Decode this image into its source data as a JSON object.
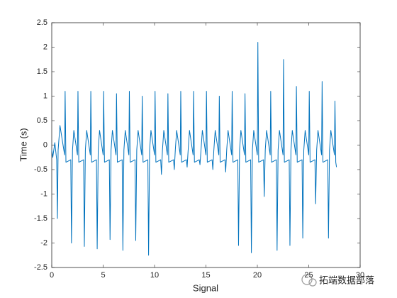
{
  "chart_data": {
    "type": "line",
    "xlabel": "Signal",
    "ylabel": "Time (s)",
    "xlim": [
      0,
      30
    ],
    "ylim": [
      -2.5,
      2.5
    ],
    "xticks": [
      0,
      5,
      10,
      15,
      20,
      25,
      30
    ],
    "yticks": [
      -2.5,
      -2,
      -1.5,
      -1,
      -0.5,
      0,
      0.5,
      1,
      1.5,
      2,
      2.5
    ],
    "x": [
      0,
      0.1,
      0.3,
      0.48,
      0.55,
      0.62,
      0.8,
      1.25,
      1.3,
      1.38,
      1.85,
      1.92,
      2.02,
      2.15,
      2.5,
      2.55,
      2.63,
      3.1,
      3.17,
      3.27,
      3.4,
      3.75,
      3.8,
      3.88,
      4.35,
      4.42,
      4.52,
      4.65,
      5,
      5.05,
      5.13,
      5.6,
      5.67,
      5.77,
      5.9,
      6.25,
      6.3,
      6.38,
      6.85,
      6.92,
      7.02,
      7.15,
      7.5,
      7.55,
      7.63,
      8.1,
      8.17,
      8.27,
      8.4,
      8.75,
      8.8,
      8.88,
      9.35,
      9.42,
      9.52,
      9.65,
      10,
      10.05,
      10.13,
      10.6,
      10.67,
      10.77,
      10.9,
      11.25,
      11.3,
      11.38,
      11.85,
      11.92,
      12.02,
      12.15,
      12.5,
      12.55,
      12.63,
      13.1,
      13.17,
      13.27,
      13.4,
      13.75,
      13.8,
      13.88,
      14.35,
      14.42,
      14.52,
      14.65,
      15,
      15.05,
      15.13,
      15.6,
      15.67,
      15.77,
      15.9,
      16.25,
      16.3,
      16.38,
      16.85,
      16.92,
      17.02,
      17.15,
      17.5,
      17.55,
      17.63,
      18.1,
      18.17,
      18.27,
      18.4,
      18.75,
      18.8,
      18.88,
      19.35,
      19.42,
      19.52,
      19.65,
      20,
      20.05,
      20.13,
      20.6,
      20.67,
      20.77,
      20.9,
      21.25,
      21.3,
      21.38,
      21.85,
      21.92,
      22.02,
      22.15,
      22.5,
      22.55,
      22.63,
      23.1,
      23.17,
      23.27,
      23.4,
      23.75,
      23.8,
      23.88,
      24.35,
      24.42,
      24.52,
      24.65,
      25,
      25.05,
      25.13,
      25.6,
      25.67,
      25.77,
      25.9,
      26.25,
      26.3,
      26.38,
      26.85,
      26.92,
      27.02,
      27.15,
      27.5,
      27.55,
      27.63,
      27.7
    ],
    "series": [
      {
        "color": "#0072bd",
        "values": [
          -0.1,
          -0.25,
          0.05,
          -0.3,
          -1.5,
          -0.1,
          0.4,
          -0.2,
          1.1,
          -0.35,
          -0.3,
          -2.0,
          -0.1,
          0.3,
          -0.2,
          1.1,
          -0.35,
          -0.3,
          -2.07,
          -0.1,
          0.3,
          -0.2,
          1.1,
          -0.35,
          -0.3,
          -2.12,
          -0.1,
          0.3,
          -0.2,
          1.1,
          -0.35,
          -0.3,
          -1.93,
          -0.1,
          0.3,
          -0.2,
          1.05,
          -0.35,
          -0.3,
          -2.15,
          -0.1,
          0.3,
          -0.2,
          1.1,
          -0.35,
          -0.3,
          -1.95,
          -0.1,
          0.3,
          -0.2,
          1.0,
          -0.35,
          -0.3,
          -2.25,
          -0.1,
          0.3,
          -0.2,
          1.1,
          -0.35,
          -0.3,
          -0.6,
          -0.1,
          0.3,
          -0.2,
          1.05,
          -0.35,
          -0.3,
          -0.5,
          -0.1,
          0.3,
          -0.2,
          1.1,
          -0.35,
          -0.3,
          -0.45,
          -0.1,
          0.3,
          -0.2,
          1.1,
          -0.35,
          -0.3,
          -0.4,
          -0.1,
          0.3,
          -0.2,
          1.1,
          -0.35,
          -0.3,
          -0.5,
          -0.1,
          0.3,
          -0.2,
          1.0,
          -0.35,
          -0.3,
          -0.55,
          -0.1,
          0.3,
          -0.2,
          1.1,
          -0.35,
          -0.3,
          -2.05,
          -0.1,
          0.3,
          -0.2,
          1.05,
          -0.35,
          -0.3,
          -2.2,
          -0.1,
          0.3,
          -0.2,
          2.1,
          -0.35,
          -0.3,
          -1.05,
          -0.1,
          0.3,
          -0.2,
          1.1,
          -0.35,
          -0.3,
          -2.15,
          -0.1,
          0.3,
          -0.2,
          1.75,
          -0.35,
          -0.3,
          -2.05,
          -0.1,
          0.3,
          -0.2,
          1.2,
          -0.35,
          -0.3,
          -1.9,
          -0.1,
          0.3,
          -0.2,
          1.1,
          -0.35,
          -0.3,
          -1.2,
          -0.1,
          0.3,
          -0.2,
          1.3,
          -0.35,
          -0.3,
          -1.9,
          -0.1,
          0.3,
          -0.2,
          0.9,
          -0.35,
          -0.45
        ]
      }
    ]
  },
  "watermark": "拓端数据部落"
}
